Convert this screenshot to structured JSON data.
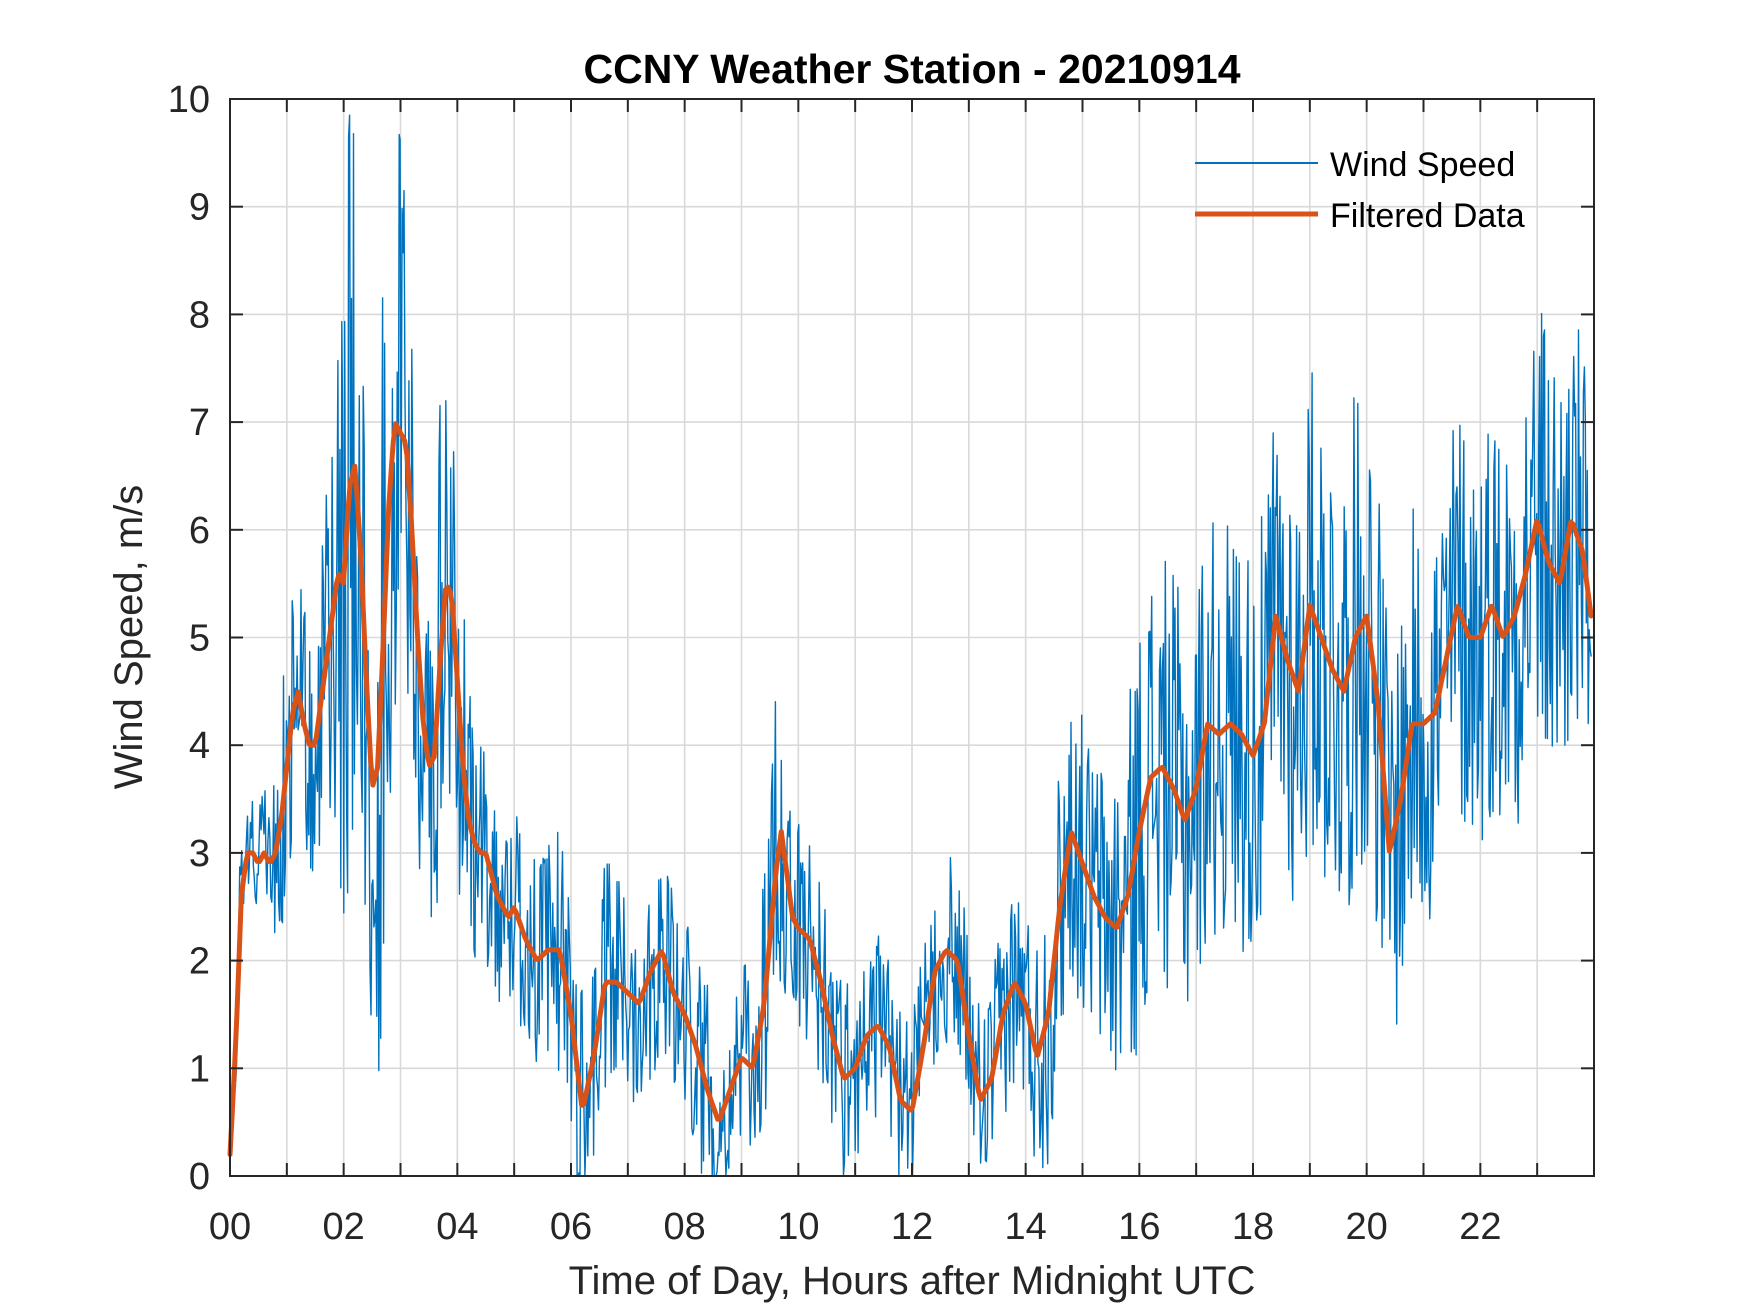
{
  "chart_data": {
    "type": "line",
    "title": "CCNY Weather Station - 20210914",
    "xlabel": "Time of Day, Hours after Midnight UTC",
    "ylabel": "Wind Speed, m/s",
    "xlim": [
      0,
      24
    ],
    "ylim": [
      0,
      10
    ],
    "x_ticks": [
      0,
      2,
      4,
      6,
      8,
      10,
      12,
      14,
      16,
      18,
      20,
      22
    ],
    "x_tick_labels": [
      "00",
      "02",
      "04",
      "06",
      "08",
      "10",
      "12",
      "14",
      "16",
      "18",
      "20",
      "22"
    ],
    "x_grid_step": 1,
    "y_ticks": [
      0,
      1,
      2,
      3,
      4,
      5,
      6,
      7,
      8,
      9,
      10
    ],
    "y_tick_labels": [
      "0",
      "1",
      "2",
      "3",
      "4",
      "5",
      "6",
      "7",
      "8",
      "9",
      "10"
    ],
    "grid": true,
    "legend_position": "top-right",
    "series": [
      {
        "name": "Wind Speed",
        "color": "#0072BD",
        "style": "raw-noisy",
        "x": [
          0,
          0.1,
          0.2,
          0.3,
          0.4,
          0.5,
          0.6,
          0.7,
          0.8,
          0.9,
          1.0,
          1.1,
          1.2,
          1.3,
          1.4,
          1.5,
          1.6,
          1.7,
          1.8,
          1.9,
          2.0,
          2.1,
          2.2,
          2.3,
          2.4,
          2.5,
          2.6,
          2.7,
          2.8,
          2.9,
          3.0,
          3.1,
          3.2,
          3.3,
          3.4,
          3.5,
          3.6,
          3.7,
          3.8,
          3.9,
          4.0,
          4.1,
          4.2,
          4.3,
          4.4,
          4.5,
          4.6,
          4.7,
          4.8,
          4.9,
          5.0,
          5.2,
          5.4,
          5.6,
          5.8,
          6.0,
          6.2,
          6.4,
          6.6,
          6.8,
          7.0,
          7.2,
          7.4,
          7.6,
          7.8,
          8.0,
          8.2,
          8.4,
          8.6,
          8.8,
          9.0,
          9.2,
          9.4,
          9.6,
          9.7,
          9.8,
          9.9,
          10.0,
          10.2,
          10.4,
          10.6,
          10.8,
          11.0,
          11.2,
          11.4,
          11.6,
          11.8,
          12.0,
          12.2,
          12.4,
          12.6,
          12.8,
          13.0,
          13.2,
          13.4,
          13.6,
          13.8,
          14.0,
          14.2,
          14.4,
          14.6,
          14.8,
          15.0,
          15.2,
          15.4,
          15.6,
          15.8,
          16.0,
          16.2,
          16.4,
          16.6,
          16.8,
          17.0,
          17.2,
          17.4,
          17.6,
          17.8,
          18.0,
          18.2,
          18.4,
          18.6,
          18.8,
          19.0,
          19.2,
          19.4,
          19.6,
          19.8,
          20.0,
          20.2,
          20.4,
          20.6,
          20.8,
          21.0,
          21.2,
          21.4,
          21.6,
          21.8,
          22.0,
          22.2,
          22.4,
          22.6,
          22.8,
          23.0,
          23.2,
          23.4,
          23.6,
          23.8,
          23.95
        ],
        "values": [
          0.2,
          1.2,
          2.6,
          3.0,
          3.0,
          2.9,
          3.0,
          2.9,
          3.0,
          3.3,
          3.8,
          4.3,
          4.5,
          4.2,
          4.0,
          4.0,
          4.4,
          4.8,
          5.2,
          5.6,
          5.5,
          6.4,
          6.6,
          5.8,
          4.6,
          3.6,
          3.8,
          5.0,
          6.3,
          7.0,
          6.9,
          6.8,
          6.0,
          5.0,
          4.2,
          3.8,
          3.9,
          4.8,
          5.5,
          5.4,
          4.6,
          3.8,
          3.3,
          3.1,
          3.0,
          3.0,
          2.8,
          2.6,
          2.5,
          2.4,
          2.5,
          2.2,
          2.0,
          2.1,
          2.1,
          1.5,
          0.6,
          1.1,
          1.8,
          1.8,
          1.7,
          1.6,
          1.9,
          2.1,
          1.7,
          1.5,
          1.2,
          0.8,
          0.5,
          0.8,
          1.1,
          1.0,
          1.6,
          2.8,
          3.2,
          2.8,
          2.4,
          2.3,
          2.2,
          1.8,
          1.3,
          0.9,
          1.0,
          1.3,
          1.4,
          1.2,
          0.7,
          0.6,
          1.2,
          1.9,
          2.1,
          2.0,
          1.3,
          0.7,
          0.9,
          1.5,
          1.8,
          1.6,
          1.1,
          1.5,
          2.5,
          3.2,
          2.9,
          2.6,
          2.4,
          2.3,
          2.6,
          3.2,
          3.7,
          3.8,
          3.6,
          3.3,
          3.6,
          4.2,
          4.1,
          4.2,
          4.1,
          3.9,
          4.2,
          5.2,
          4.8,
          4.5,
          5.3,
          5.0,
          4.7,
          4.5,
          5.0,
          5.2,
          4.4,
          3.0,
          3.5,
          4.2,
          4.2,
          4.3,
          4.8,
          5.3,
          5.0,
          5.0,
          5.3,
          5.0,
          5.2,
          5.6,
          6.1,
          5.7,
          5.5,
          6.1,
          5.8,
          5.2
        ],
        "spread": [
          0.1,
          0.5,
          0.8,
          0.5,
          0.5,
          0.5,
          0.6,
          0.6,
          0.8,
          1.2,
          1.5,
          1.5,
          1.2,
          1.2,
          1.2,
          1.3,
          1.4,
          1.6,
          1.8,
          2.5,
          3.5,
          4.0,
          3.0,
          2.5,
          2.5,
          2.5,
          3.0,
          3.5,
          3.5,
          3.0,
          2.8,
          2.5,
          2.2,
          2.0,
          2.0,
          2.0,
          2.0,
          2.5,
          2.2,
          2.0,
          1.8,
          1.6,
          1.4,
          1.2,
          1.0,
          1.0,
          1.0,
          1.0,
          1.0,
          1.0,
          1.0,
          1.0,
          1.0,
          1.0,
          1.2,
          1.3,
          1.2,
          1.2,
          1.1,
          1.1,
          1.1,
          1.0,
          1.0,
          1.0,
          1.0,
          1.0,
          1.0,
          1.0,
          0.9,
          0.9,
          0.9,
          0.9,
          1.2,
          1.8,
          1.6,
          1.4,
          1.2,
          1.0,
          1.0,
          1.0,
          1.0,
          0.9,
          0.9,
          0.9,
          0.9,
          0.9,
          0.9,
          0.9,
          0.9,
          0.9,
          0.9,
          0.9,
          0.9,
          0.9,
          0.9,
          1.0,
          1.0,
          1.0,
          1.2,
          1.4,
          1.4,
          1.4,
          1.4,
          1.4,
          1.5,
          1.6,
          1.8,
          2.0,
          2.0,
          2.0,
          2.0,
          2.0,
          2.0,
          2.0,
          2.0,
          2.0,
          2.0,
          2.0,
          2.0,
          2.2,
          2.2,
          2.2,
          2.3,
          2.3,
          2.3,
          2.3,
          2.3,
          2.3,
          2.2,
          2.0,
          2.0,
          2.0,
          2.0,
          2.0,
          2.0,
          2.0,
          2.0,
          2.0,
          2.0,
          2.0,
          2.0,
          2.2,
          2.2,
          2.2,
          2.2,
          2.2,
          2.0,
          1.5
        ]
      },
      {
        "name": "Filtered Data",
        "color": "#D95319",
        "style": "smooth",
        "x": [
          0,
          0.1,
          0.2,
          0.3,
          0.4,
          0.5,
          0.6,
          0.7,
          0.8,
          0.9,
          1.0,
          1.1,
          1.2,
          1.3,
          1.4,
          1.5,
          1.6,
          1.7,
          1.8,
          1.9,
          2.0,
          2.1,
          2.2,
          2.3,
          2.4,
          2.5,
          2.6,
          2.7,
          2.8,
          2.9,
          3.0,
          3.1,
          3.2,
          3.3,
          3.4,
          3.5,
          3.6,
          3.7,
          3.8,
          3.9,
          4.0,
          4.1,
          4.2,
          4.3,
          4.4,
          4.5,
          4.6,
          4.7,
          4.8,
          4.9,
          5.0,
          5.2,
          5.4,
          5.6,
          5.8,
          6.0,
          6.2,
          6.4,
          6.6,
          6.8,
          7.0,
          7.2,
          7.4,
          7.6,
          7.8,
          8.0,
          8.2,
          8.4,
          8.6,
          8.8,
          9.0,
          9.2,
          9.4,
          9.6,
          9.7,
          9.8,
          9.9,
          10.0,
          10.2,
          10.4,
          10.6,
          10.8,
          11.0,
          11.2,
          11.4,
          11.6,
          11.8,
          12.0,
          12.2,
          12.4,
          12.6,
          12.8,
          13.0,
          13.2,
          13.4,
          13.6,
          13.8,
          14.0,
          14.2,
          14.4,
          14.6,
          14.8,
          15.0,
          15.2,
          15.4,
          15.6,
          15.8,
          16.0,
          16.2,
          16.4,
          16.6,
          16.8,
          17.0,
          17.2,
          17.4,
          17.6,
          17.8,
          18.0,
          18.2,
          18.4,
          18.6,
          18.8,
          19.0,
          19.2,
          19.4,
          19.6,
          19.8,
          20.0,
          20.2,
          20.4,
          20.6,
          20.8,
          21.0,
          21.2,
          21.4,
          21.6,
          21.8,
          22.0,
          22.2,
          22.4,
          22.6,
          22.8,
          23.0,
          23.2,
          23.4,
          23.6,
          23.8,
          23.95
        ],
        "values": [
          0.2,
          1.2,
          2.6,
          3.0,
          3.0,
          2.9,
          3.0,
          2.9,
          3.0,
          3.3,
          3.8,
          4.3,
          4.5,
          4.2,
          4.0,
          4.0,
          4.4,
          4.8,
          5.2,
          5.6,
          5.5,
          6.4,
          6.6,
          5.8,
          4.6,
          3.6,
          3.8,
          5.0,
          6.3,
          7.0,
          6.9,
          6.8,
          6.0,
          5.0,
          4.2,
          3.8,
          3.9,
          4.8,
          5.5,
          5.4,
          4.6,
          3.8,
          3.3,
          3.1,
          3.0,
          3.0,
          2.8,
          2.6,
          2.5,
          2.4,
          2.5,
          2.2,
          2.0,
          2.1,
          2.1,
          1.5,
          0.6,
          1.1,
          1.8,
          1.8,
          1.7,
          1.6,
          1.9,
          2.1,
          1.7,
          1.5,
          1.2,
          0.8,
          0.5,
          0.8,
          1.1,
          1.0,
          1.6,
          2.8,
          3.2,
          2.8,
          2.4,
          2.3,
          2.2,
          1.8,
          1.3,
          0.9,
          1.0,
          1.3,
          1.4,
          1.2,
          0.7,
          0.6,
          1.2,
          1.9,
          2.1,
          2.0,
          1.3,
          0.7,
          0.9,
          1.5,
          1.8,
          1.6,
          1.1,
          1.5,
          2.5,
          3.2,
          2.9,
          2.6,
          2.4,
          2.3,
          2.6,
          3.2,
          3.7,
          3.8,
          3.6,
          3.3,
          3.6,
          4.2,
          4.1,
          4.2,
          4.1,
          3.9,
          4.2,
          5.2,
          4.8,
          4.5,
          5.3,
          5.0,
          4.7,
          4.5,
          5.0,
          5.2,
          4.4,
          3.0,
          3.5,
          4.2,
          4.2,
          4.3,
          4.8,
          5.3,
          5.0,
          5.0,
          5.3,
          5.0,
          5.2,
          5.6,
          6.1,
          5.7,
          5.5,
          6.1,
          5.8,
          5.2
        ]
      }
    ]
  }
}
